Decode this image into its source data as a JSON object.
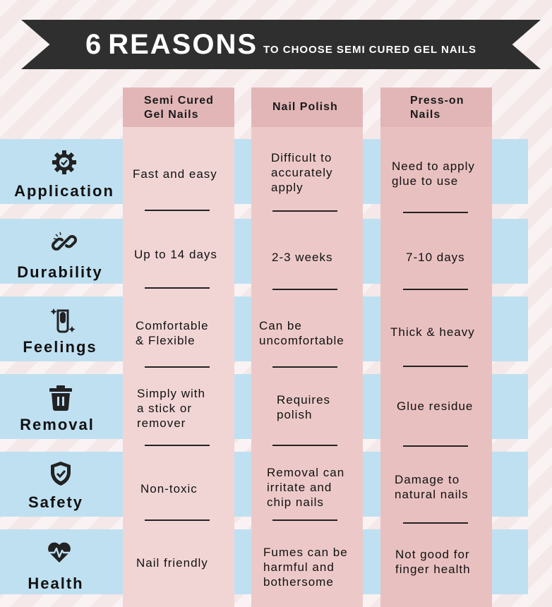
{
  "header": {
    "number": "6",
    "title": "REASONS",
    "subtitle": "TO CHOOSE SEMI CURED GEL NAILS"
  },
  "columns": [
    {
      "label": "Semi Cured\nGel Nails"
    },
    {
      "label": "Nail Polish"
    },
    {
      "label": "Press-on\nNails"
    }
  ],
  "rows": [
    {
      "label": "Application",
      "icon": "gear-check-icon",
      "cells": [
        "Fast and easy",
        "Difficult to\naccurately\napply",
        "Need to apply\nglue to use"
      ]
    },
    {
      "label": "Durability",
      "icon": "chain-link-icon",
      "cells": [
        "Up to 14 days",
        "2-3 weeks",
        "7-10 days"
      ]
    },
    {
      "label": "Feelings",
      "icon": "nail-sparkle-icon",
      "cells": [
        "Comfortable\n& Flexible",
        "Can be\nuncomfortable",
        "Thick & heavy"
      ]
    },
    {
      "label": "Removal",
      "icon": "trash-icon",
      "cells": [
        "Simply with\na stick or\nremover",
        "Requires\npolish",
        "Glue residue"
      ]
    },
    {
      "label": "Safety",
      "icon": "shield-check-icon",
      "cells": [
        "Non-toxic",
        "Removal can\nirritate and\nchip nails",
        "Damage to\nnatural nails"
      ]
    },
    {
      "label": "Health",
      "icon": "heart-pulse-icon",
      "cells": [
        "Nail friendly",
        "Fumes can be\nharmful and\nbothersome",
        "Not good for\nfinger health"
      ]
    }
  ]
}
